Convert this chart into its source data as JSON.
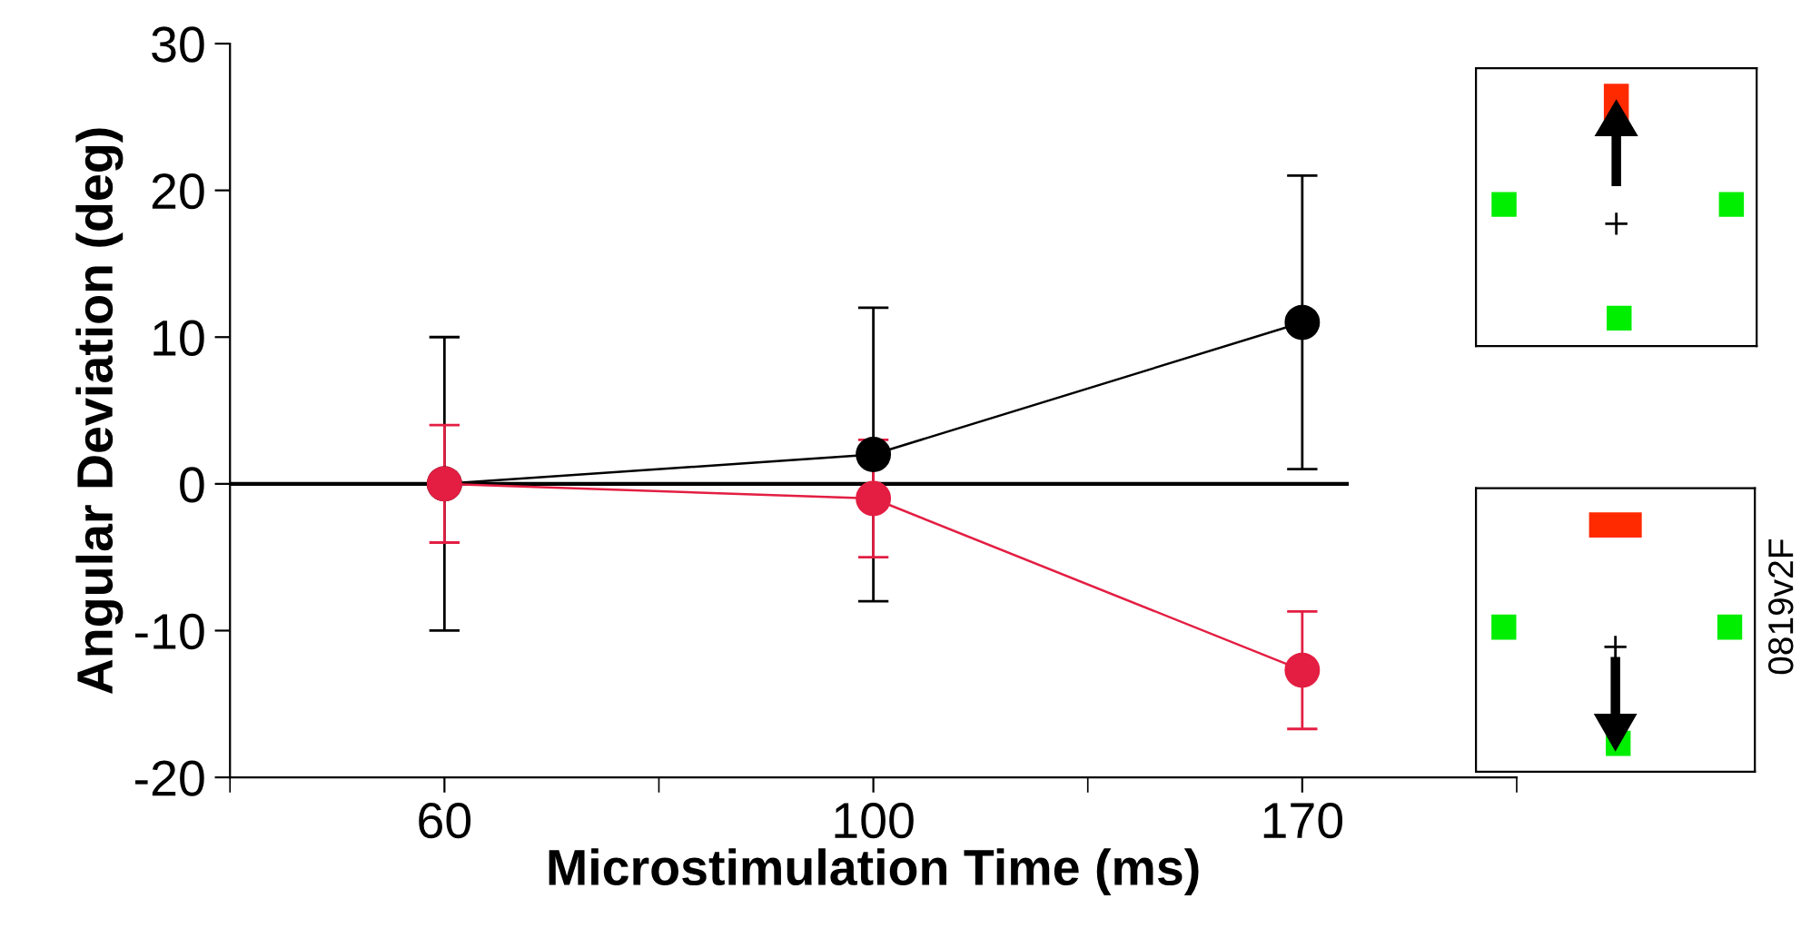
{
  "chart_data": {
    "type": "line",
    "xlabel": "Microstimulation Time (ms)",
    "ylabel": "Angular Deviation (deg)",
    "categories": [
      "60",
      "100",
      "170"
    ],
    "series": [
      {
        "color": "#000000",
        "values": [
          0,
          2,
          11
        ],
        "errors": [
          10,
          10,
          10
        ]
      },
      {
        "color": "#e31e42",
        "values": [
          0,
          -1,
          -12.7
        ],
        "errors": [
          4,
          4,
          4
        ]
      }
    ],
    "ylim": [
      -20,
      30
    ],
    "yticks": [
      -20,
      -10,
      0,
      10,
      20,
      30
    ],
    "marker": "circle",
    "grid": false,
    "legend": false,
    "ref_lines": [
      {
        "axis": "y",
        "value": 0,
        "color": "#000000"
      }
    ],
    "annotations": [
      "0819v2F"
    ]
  }
}
